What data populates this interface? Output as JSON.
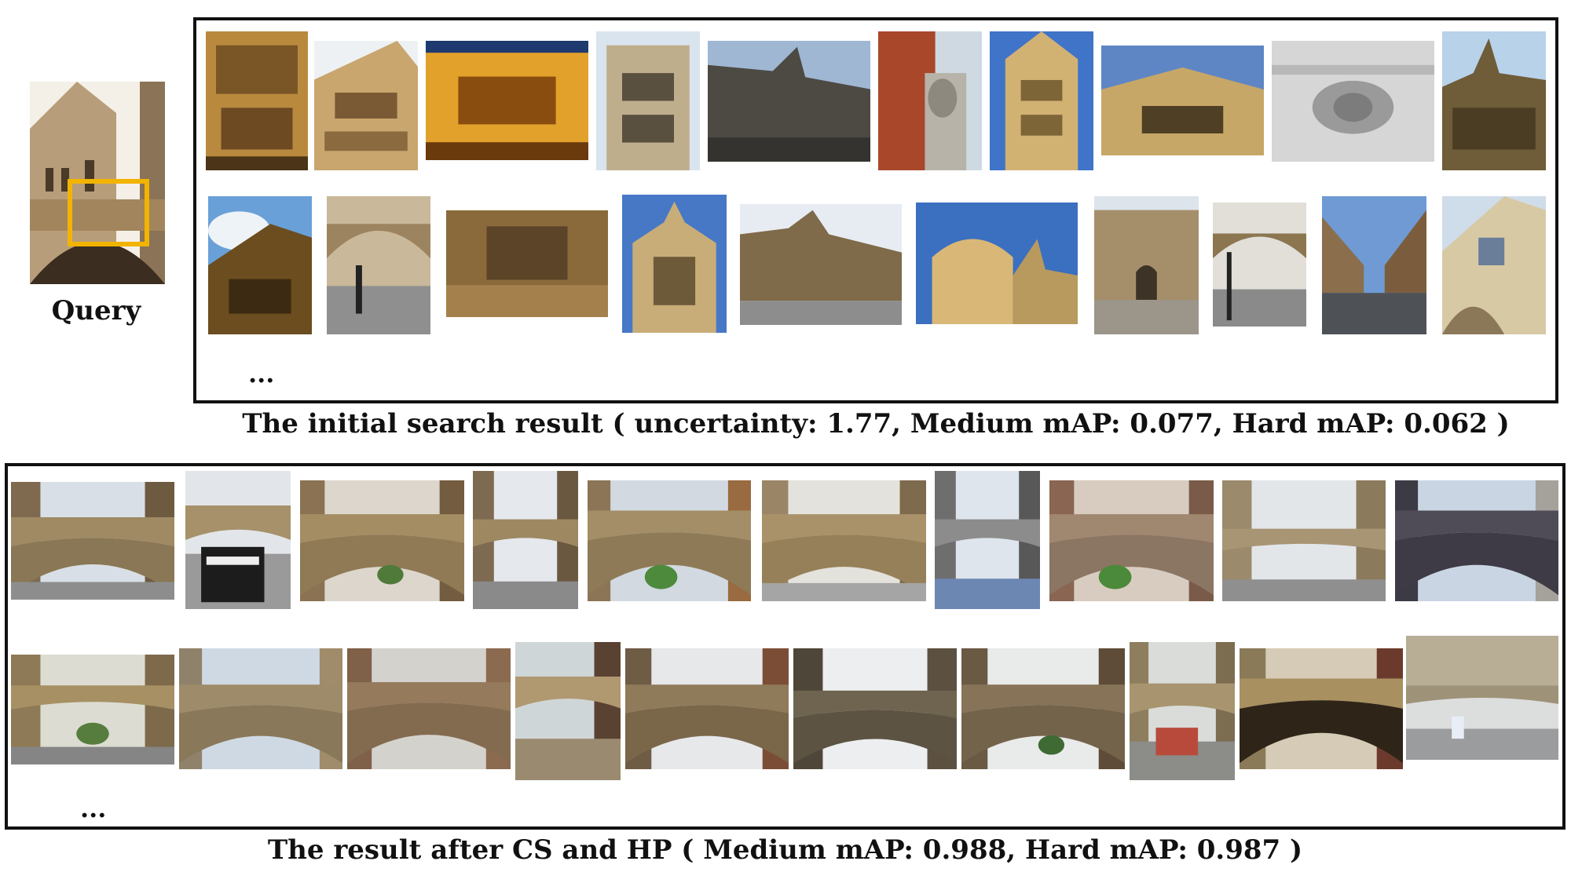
{
  "query": {
    "label": "Query",
    "box_color": "#f2b400"
  },
  "initial_result": {
    "ellipsis": "...",
    "caption": "The initial search result ( uncertainty: 1.77, Medium mAP: 0.077, Hard mAP: 0.062 )",
    "row1": [
      "tower facade detail",
      "ornate building facade",
      "illuminated facade at night",
      "ornate tower windows",
      "street with towers",
      "building corner statue",
      "sunlit stone tower",
      "facade with windows",
      "carved lion relief",
      "gothic college facade"
    ],
    "row2": [
      "tower against cloudy sky",
      "bridge with pedestrian",
      "oriel window",
      "stone tower",
      "street of colleges",
      "domed gateway",
      "college gate with visitors",
      "bridge and street",
      "narrow street",
      "ornate bay window"
    ]
  },
  "refined_result": {
    "ellipsis": "...",
    "caption": "The result after CS and HP ( Medium mAP: 0.988, Hard mAP: 0.987 )",
    "row1": [
      "bridge of sighs",
      "bridge with students",
      "bridge of sighs",
      "bridge of sighs",
      "bridge of sighs",
      "bridge of sighs",
      "bridge of sighs",
      "bridge of sighs",
      "bridge of sighs",
      "bridge of sighs"
    ],
    "row2": [
      "bridge of sighs",
      "bridge of sighs",
      "bridge of sighs",
      "bridge of sighs",
      "bridge of sighs",
      "bridge of sighs",
      "bridge of sighs",
      "bridge with visitors",
      "bridge of sighs",
      "bridge on rainy day"
    ]
  },
  "colors": {
    "frame": "#111111",
    "highlight": "#f2b400",
    "sky": "#5b8ec9",
    "stone": "#c8a46a"
  }
}
